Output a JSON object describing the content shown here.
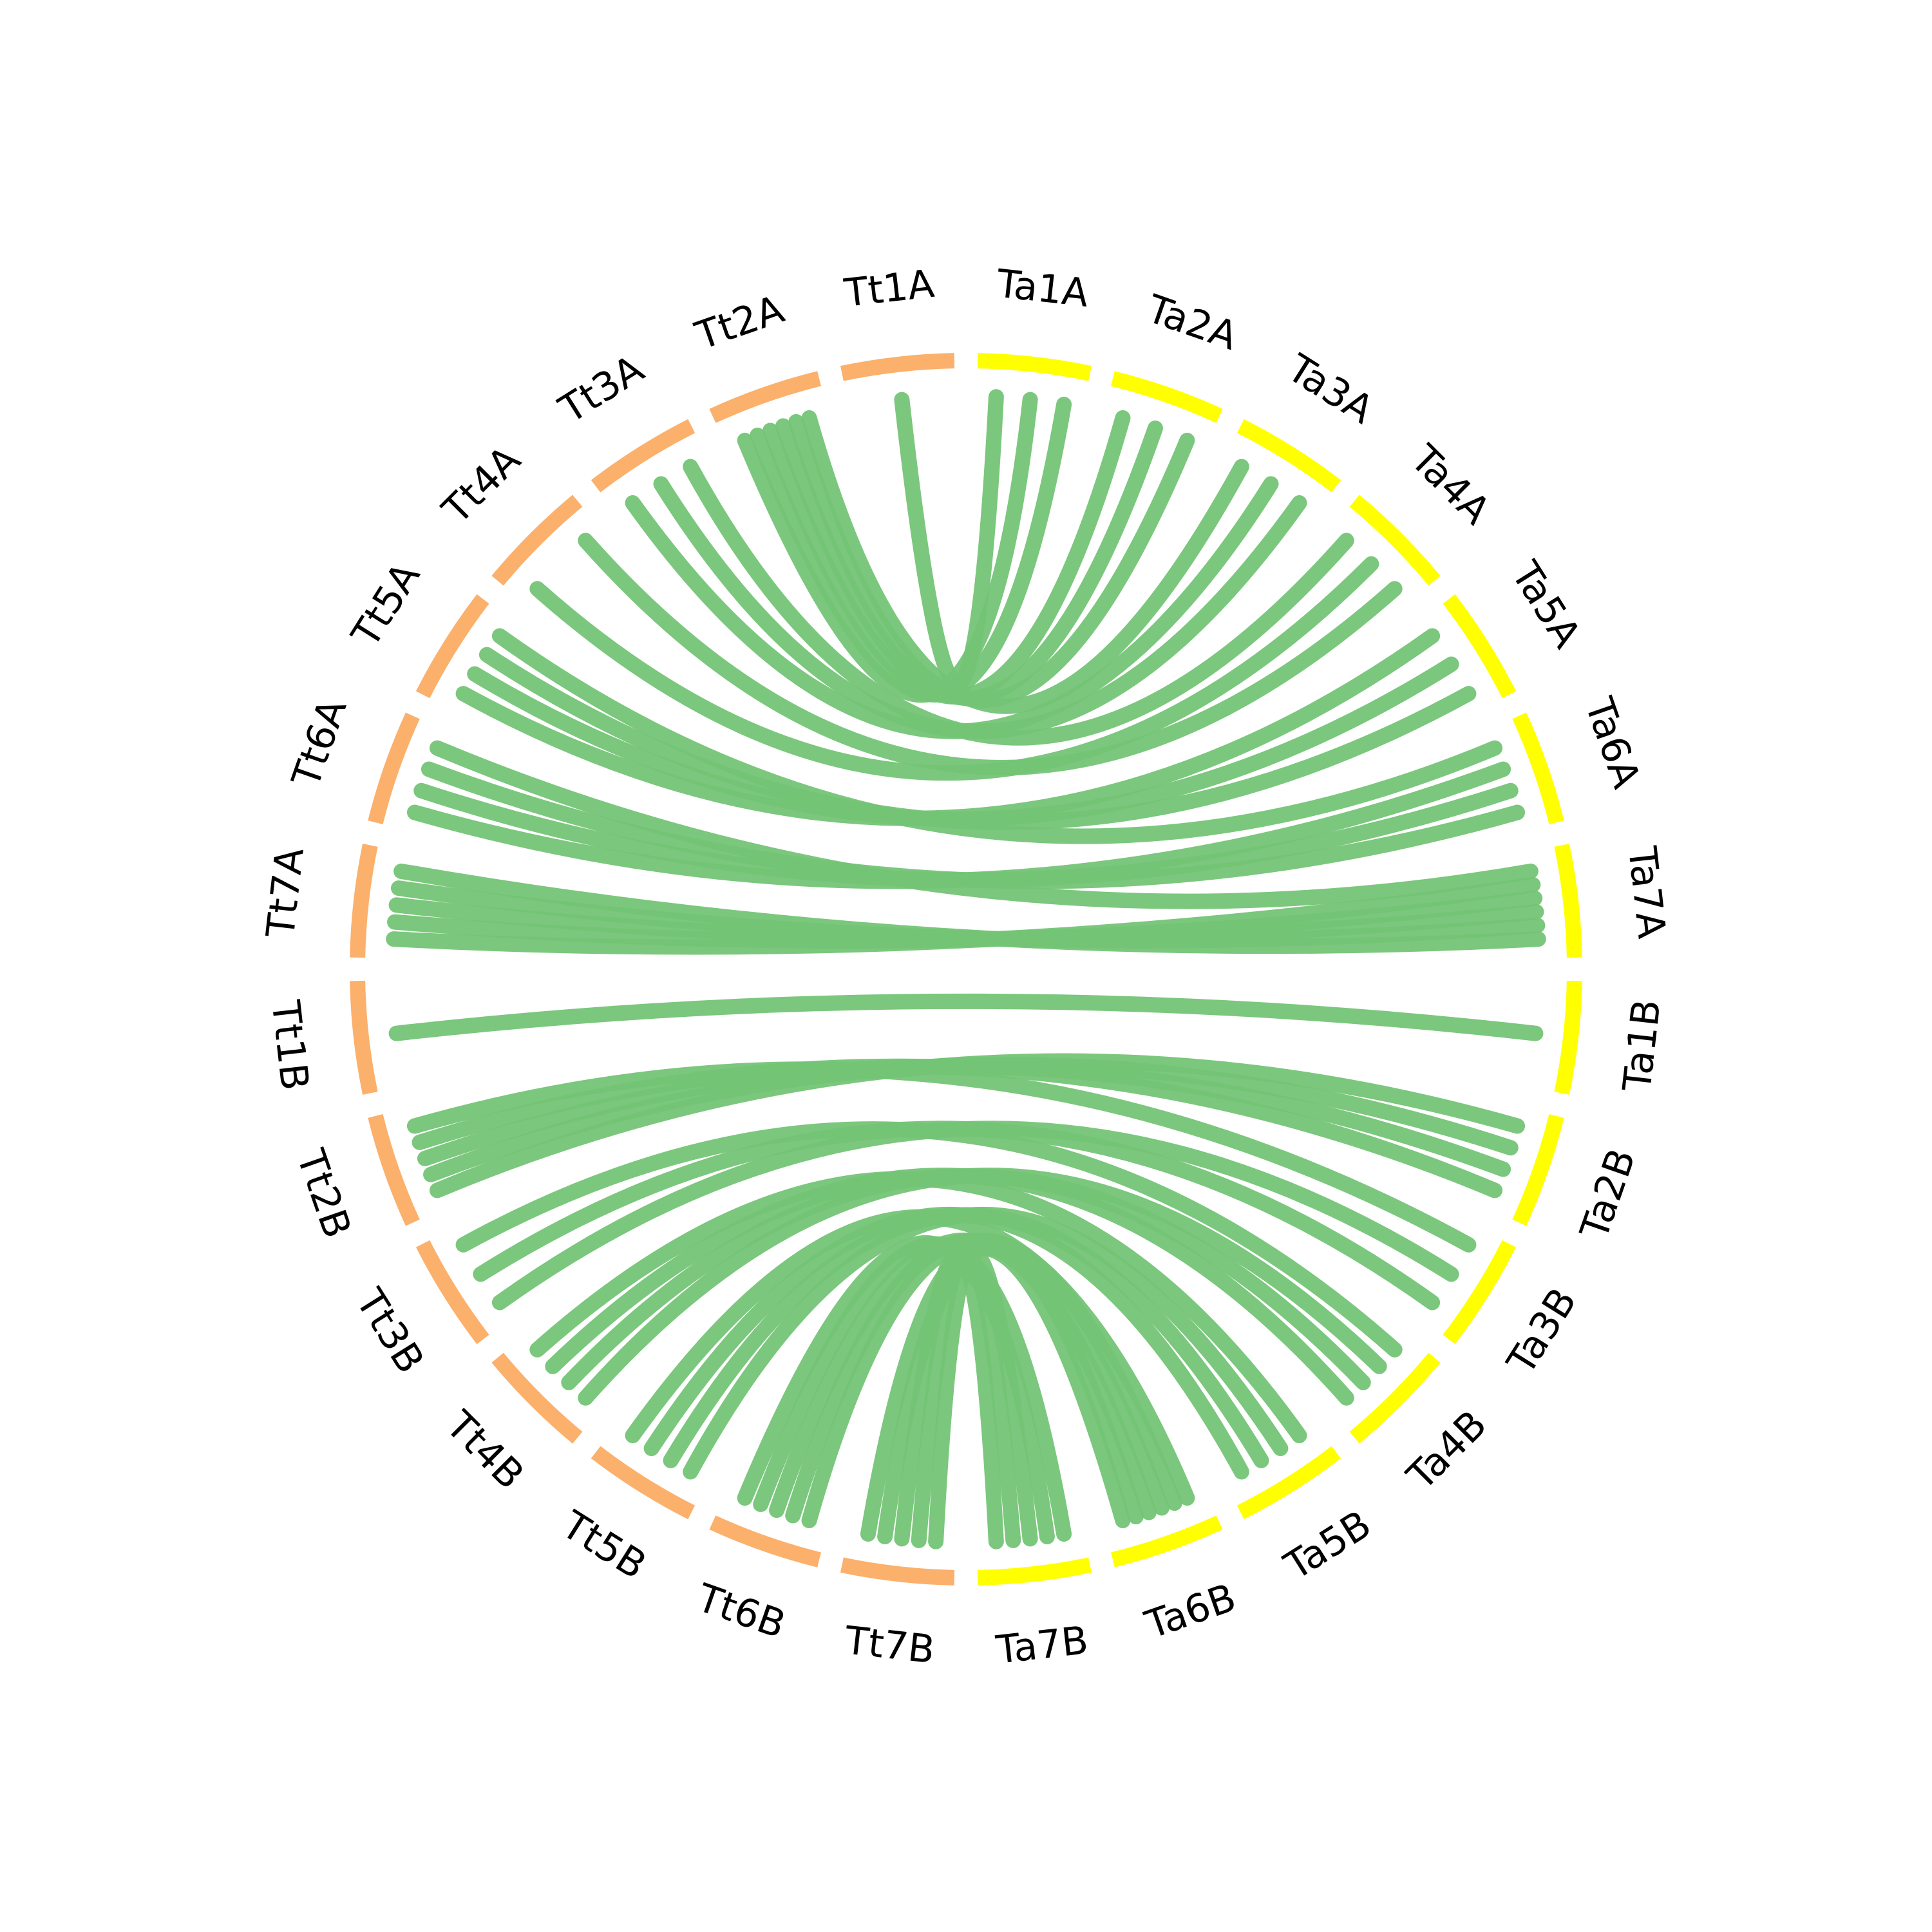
{
  "colors": {
    "tt": "#fbb06c",
    "ta": "#ffff00",
    "link": "#74c476",
    "background": "#ffffff",
    "label": "#000000"
  },
  "chromosomes": [
    {
      "id": "Tt1A",
      "label": "Tt1A",
      "genome": "tt"
    },
    {
      "id": "Ta1A",
      "label": "Ta1A",
      "genome": "ta"
    },
    {
      "id": "Ta2A",
      "label": "Ta2A",
      "genome": "ta"
    },
    {
      "id": "Ta3A",
      "label": "Ta3A",
      "genome": "ta"
    },
    {
      "id": "Ta4A",
      "label": "Ta4A",
      "genome": "ta"
    },
    {
      "id": "Ta5A",
      "label": "Ta5A",
      "genome": "ta"
    },
    {
      "id": "Ta6A",
      "label": "Ta6A",
      "genome": "ta"
    },
    {
      "id": "Ta7A",
      "label": "Ta7A",
      "genome": "ta"
    },
    {
      "id": "Ta1B",
      "label": "Ta1B",
      "genome": "ta"
    },
    {
      "id": "Ta2B",
      "label": "Ta2B",
      "genome": "ta"
    },
    {
      "id": "Ta3B",
      "label": "Ta3B",
      "genome": "ta"
    },
    {
      "id": "Ta4B",
      "label": "Ta4B",
      "genome": "ta"
    },
    {
      "id": "Ta5B",
      "label": "Ta5B",
      "genome": "ta"
    },
    {
      "id": "Ta6B",
      "label": "Ta6B",
      "genome": "ta"
    },
    {
      "id": "Ta7B",
      "label": "Ta7B",
      "genome": "ta"
    },
    {
      "id": "Tt7B",
      "label": "Tt7B",
      "genome": "tt"
    },
    {
      "id": "Tt6B",
      "label": "Tt6B",
      "genome": "tt"
    },
    {
      "id": "Tt5B",
      "label": "Tt5B",
      "genome": "tt"
    },
    {
      "id": "Tt4B",
      "label": "Tt4B",
      "genome": "tt"
    },
    {
      "id": "Tt3B",
      "label": "Tt3B",
      "genome": "tt"
    },
    {
      "id": "Tt2B",
      "label": "Tt2B",
      "genome": "tt"
    },
    {
      "id": "Tt1B",
      "label": "Tt1B",
      "genome": "tt"
    },
    {
      "id": "Tt7A",
      "label": "Tt7A",
      "genome": "tt"
    },
    {
      "id": "Tt6A",
      "label": "Tt6A",
      "genome": "tt"
    },
    {
      "id": "Tt5A",
      "label": "Tt5A",
      "genome": "tt"
    },
    {
      "id": "Tt4A",
      "label": "Tt4A",
      "genome": "tt"
    },
    {
      "id": "Tt3A",
      "label": "Tt3A",
      "genome": "tt"
    },
    {
      "id": "Tt2A",
      "label": "Tt2A",
      "genome": "tt"
    }
  ],
  "links": [
    {
      "from": "Tt1A",
      "to": "Ta1A"
    },
    {
      "from": "Tt2A",
      "to": "Ta1A"
    },
    {
      "from": "Tt2A",
      "to": "Ta1A"
    },
    {
      "from": "Tt2A",
      "to": "Ta2A"
    },
    {
      "from": "Tt2A",
      "to": "Ta2A"
    },
    {
      "from": "Tt2A",
      "to": "Ta2A"
    },
    {
      "from": "Tt2A",
      "to": "Ta3A"
    },
    {
      "from": "Tt3A",
      "to": "Ta3A"
    },
    {
      "from": "Tt3A",
      "to": "Ta3A"
    },
    {
      "from": "Tt3A",
      "to": "Ta4A"
    },
    {
      "from": "Tt4A",
      "to": "Ta4A"
    },
    {
      "from": "Tt4A",
      "to": "Ta4A"
    },
    {
      "from": "Tt5A",
      "to": "Ta5A"
    },
    {
      "from": "Tt5A",
      "to": "Ta5A"
    },
    {
      "from": "Tt5A",
      "to": "Ta5A"
    },
    {
      "from": "Tt5A",
      "to": "Ta6A"
    },
    {
      "from": "Tt6A",
      "to": "Ta6A"
    },
    {
      "from": "Tt6A",
      "to": "Ta6A"
    },
    {
      "from": "Tt6A",
      "to": "Ta6A"
    },
    {
      "from": "Tt6A",
      "to": "Ta7A"
    },
    {
      "from": "Tt7A",
      "to": "Ta7A"
    },
    {
      "from": "Tt7A",
      "to": "Ta7A"
    },
    {
      "from": "Tt7A",
      "to": "Ta7A"
    },
    {
      "from": "Tt7A",
      "to": "Ta7A"
    },
    {
      "from": "Tt7A",
      "to": "Ta7A"
    },
    {
      "from": "Tt1B",
      "to": "Ta1B"
    },
    {
      "from": "Tt2B",
      "to": "Ta2B"
    },
    {
      "from": "Tt2B",
      "to": "Ta2B"
    },
    {
      "from": "Tt2B",
      "to": "Ta2B"
    },
    {
      "from": "Tt2B",
      "to": "Ta2B"
    },
    {
      "from": "Tt2B",
      "to": "Ta3B"
    },
    {
      "from": "Tt3B",
      "to": "Ta3B"
    },
    {
      "from": "Tt3B",
      "to": "Ta3B"
    },
    {
      "from": "Tt3B",
      "to": "Ta4B"
    },
    {
      "from": "Tt4B",
      "to": "Ta4B"
    },
    {
      "from": "Tt4B",
      "to": "Ta4B"
    },
    {
      "from": "Tt4B",
      "to": "Ta4B"
    },
    {
      "from": "Tt4B",
      "to": "Ta5B"
    },
    {
      "from": "Tt5B",
      "to": "Ta5B"
    },
    {
      "from": "Tt5B",
      "to": "Ta5B"
    },
    {
      "from": "Tt5B",
      "to": "Ta5B"
    },
    {
      "from": "Tt5B",
      "to": "Ta6B"
    },
    {
      "from": "Tt6B",
      "to": "Ta6B"
    },
    {
      "from": "Tt6B",
      "to": "Ta6B"
    },
    {
      "from": "Tt6B",
      "to": "Ta6B"
    },
    {
      "from": "Tt6B",
      "to": "Ta7B"
    },
    {
      "from": "Tt6B",
      "to": "Ta7B"
    },
    {
      "from": "Tt7B",
      "to": "Ta7B"
    },
    {
      "from": "Tt7B",
      "to": "Ta7B"
    },
    {
      "from": "Tt7B",
      "to": "Ta7B"
    },
    {
      "from": "Tt7B",
      "to": "Ta6B"
    },
    {
      "from": "Tt7B",
      "to": "Ta6B"
    }
  ]
}
